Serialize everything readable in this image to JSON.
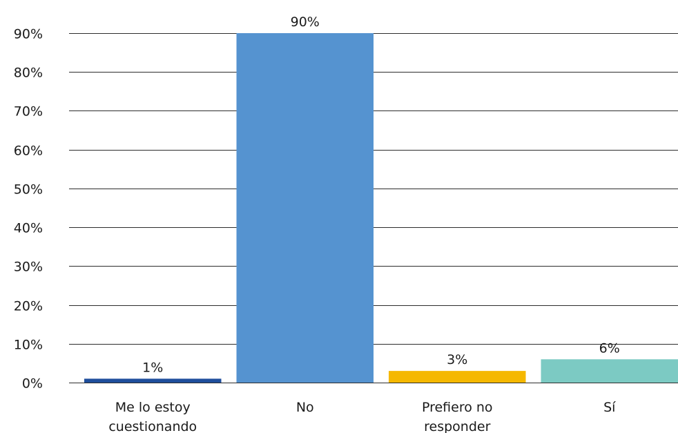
{
  "chart_data": {
    "type": "bar",
    "categories": [
      [
        "Me lo estoy",
        "cuestionando"
      ],
      [
        "No"
      ],
      [
        "Prefiero no",
        "responder"
      ],
      [
        "Sí"
      ]
    ],
    "values": [
      1,
      90,
      3,
      6
    ],
    "data_labels": [
      "1%",
      "90%",
      "3%",
      "6%"
    ],
    "colors": [
      "#1f4e9c",
      "#5593d0",
      "#f5b800",
      "#7ccac3"
    ],
    "yticks": [
      0,
      10,
      20,
      30,
      40,
      50,
      60,
      70,
      80,
      90
    ],
    "ytick_labels": [
      "0%",
      "10%",
      "20%",
      "30%",
      "40%",
      "50%",
      "60%",
      "70%",
      "80%",
      "90%"
    ],
    "ylim": [
      0,
      90
    ],
    "grid": true,
    "legend": "none",
    "title": "",
    "xlabel": "",
    "ylabel": ""
  }
}
